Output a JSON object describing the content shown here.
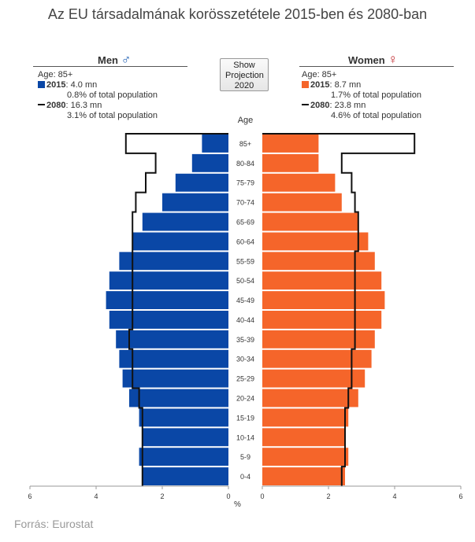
{
  "title": "Az EU társadalmának korösszetétele 2015-ben és 2080-ban",
  "source": "Forrás: Eurostat",
  "button": {
    "label_lines": [
      "Show",
      "Projection",
      "2020"
    ]
  },
  "men_panel": {
    "title": "Men",
    "symbol": "♂",
    "symbol_color": "#1f5fb4",
    "age": "Age: 85+",
    "y2015_label": "2015",
    "y2015_value": ": 4.0 mn",
    "y2015_share": "0.8% of total population",
    "y2080_label": "2080",
    "y2080_value": ": 16.3 mn",
    "y2080_share": "3.1% of total population"
  },
  "women_panel": {
    "title": "Women",
    "symbol": "♀",
    "symbol_color": "#c0282d",
    "age": "Age: 85+",
    "y2015_label": "2015",
    "y2015_value": ": 8.7 mn",
    "y2015_share": "1.7% of total population",
    "y2080_label": "2080",
    "y2080_value": ": 23.8 mn",
    "y2080_share": "4.6% of total population"
  },
  "chart_data": {
    "type": "bar",
    "subtype": "population-pyramid",
    "category_axis_label": "Age",
    "value_axis_label": "%",
    "categories": [
      "85+",
      "80-84",
      "75-79",
      "70-74",
      "65-69",
      "60-64",
      "55-59",
      "50-54",
      "45-49",
      "40-44",
      "35-39",
      "30-34",
      "25-29",
      "20-24",
      "15-19",
      "10-14",
      "5-9",
      "0-4"
    ],
    "series": [
      {
        "name": "2015",
        "group": "Men",
        "color": "#0a47a6",
        "values": [
          0.8,
          1.1,
          1.6,
          2.0,
          2.6,
          2.9,
          3.3,
          3.6,
          3.7,
          3.6,
          3.4,
          3.3,
          3.2,
          3.0,
          2.7,
          2.6,
          2.7,
          2.6
        ]
      },
      {
        "name": "2015",
        "group": "Women",
        "color": "#f5652a",
        "values": [
          1.7,
          1.7,
          2.2,
          2.4,
          2.9,
          3.2,
          3.4,
          3.6,
          3.7,
          3.6,
          3.4,
          3.3,
          3.1,
          2.9,
          2.6,
          2.5,
          2.6,
          2.5
        ]
      },
      {
        "name": "2080",
        "group": "Men",
        "color": "#111111",
        "values": [
          3.1,
          2.2,
          2.5,
          2.8,
          2.9,
          2.9,
          2.9,
          2.9,
          2.9,
          2.9,
          3.0,
          2.9,
          2.9,
          2.7,
          2.6,
          2.6,
          2.6,
          2.6
        ]
      },
      {
        "name": "2080",
        "group": "Women",
        "color": "#111111",
        "values": [
          4.6,
          2.4,
          2.7,
          2.8,
          2.9,
          2.9,
          2.8,
          2.8,
          2.8,
          2.8,
          2.8,
          2.7,
          2.7,
          2.6,
          2.5,
          2.5,
          2.5,
          2.4
        ]
      }
    ],
    "xlim": [
      0,
      6
    ],
    "x_ticks": [
      6,
      4,
      2,
      0
    ],
    "grid": false
  }
}
